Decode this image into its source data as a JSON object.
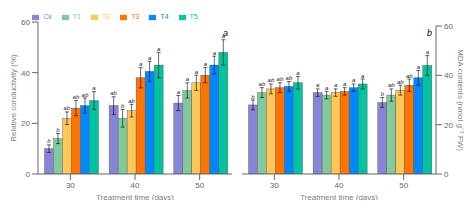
{
  "chart_data": [
    {
      "type": "bar",
      "title": "a",
      "xlabel": "Treatment time (days)",
      "ylabel": "Relative conductivity (%)",
      "categories": [
        30,
        40,
        50
      ],
      "ylim": [
        0,
        60
      ],
      "yticks": [
        0,
        20,
        40,
        60
      ],
      "grid": false,
      "legend": "top",
      "series": [
        {
          "name": "Ck",
          "color": "#8884d8",
          "values": [
            10.0,
            27.0,
            28.0
          ],
          "errors": [
            1.5,
            3.5,
            3.0
          ],
          "sig_labels": [
            "b",
            "ab",
            "a"
          ]
        },
        {
          "name": "T1",
          "color": "#82ca9d",
          "values": [
            14.0,
            22.0,
            33.0
          ],
          "errors": [
            2.0,
            3.5,
            3.0
          ],
          "sig_labels": [
            "b",
            "b",
            "a"
          ]
        },
        {
          "name": "T2",
          "color": "#ffc658",
          "values": [
            22.0,
            25.0,
            36.0
          ],
          "errors": [
            2.5,
            2.5,
            3.0
          ],
          "sig_labels": [
            "ab",
            "ab",
            "a"
          ]
        },
        {
          "name": "T3",
          "color": "#ff7300",
          "values": [
            26.0,
            38.0,
            39.0
          ],
          "errors": [
            3.0,
            4.0,
            3.0
          ],
          "sig_labels": [
            "ab",
            "a",
            "a"
          ]
        },
        {
          "name": "T4",
          "color": "#0088fe",
          "values": [
            27.0,
            40.5,
            43.0
          ],
          "errors": [
            3.0,
            4.0,
            3.5
          ],
          "sig_labels": [
            "ab",
            "a",
            "a"
          ]
        },
        {
          "name": "T5",
          "color": "#00c49f",
          "values": [
            29.0,
            43.0,
            48.0
          ],
          "errors": [
            3.5,
            5.0,
            5.0
          ],
          "sig_labels": [
            "a",
            "a",
            "a"
          ]
        }
      ]
    },
    {
      "type": "bar",
      "title": "b",
      "xlabel": "Treatment time (days)",
      "ylabel": "MDA contents (nmol g⁻¹ FW)",
      "categories": [
        30,
        40,
        50
      ],
      "ylim": [
        0,
        60
      ],
      "yticks": [
        0,
        20,
        40,
        60
      ],
      "grid": false,
      "series": [
        {
          "name": "Ck",
          "color": "#8884d8",
          "values": [
            28.0,
            33.0,
            29.0
          ],
          "errors": [
            2.0,
            1.5,
            2.0
          ],
          "sig_labels": [
            "b",
            "a",
            "b"
          ]
        },
        {
          "name": "T1",
          "color": "#82ca9d",
          "values": [
            33.0,
            32.0,
            32.0
          ],
          "errors": [
            2.0,
            1.5,
            2.5
          ],
          "sig_labels": [
            "ab",
            "a",
            "ab"
          ]
        },
        {
          "name": "T2",
          "color": "#ffc658",
          "values": [
            34.5,
            33.0,
            34.0
          ],
          "errors": [
            2.0,
            1.5,
            2.0
          ],
          "sig_labels": [
            "ab",
            "a",
            "ab"
          ]
        },
        {
          "name": "T3",
          "color": "#ff7300",
          "values": [
            35.0,
            33.5,
            36.0
          ],
          "errors": [
            2.0,
            1.5,
            2.5
          ],
          "sig_labels": [
            "ab",
            "a",
            "ab"
          ]
        },
        {
          "name": "T4",
          "color": "#0088fe",
          "values": [
            35.5,
            35.0,
            39.0
          ],
          "errors": [
            2.0,
            1.5,
            3.0
          ],
          "sig_labels": [
            "ab",
            "a",
            "a"
          ]
        },
        {
          "name": "T5",
          "color": "#00c49f",
          "values": [
            37.0,
            36.5,
            44.0
          ],
          "errors": [
            2.5,
            2.0,
            4.0
          ],
          "sig_labels": [
            "a",
            "a",
            "a"
          ]
        }
      ]
    }
  ]
}
